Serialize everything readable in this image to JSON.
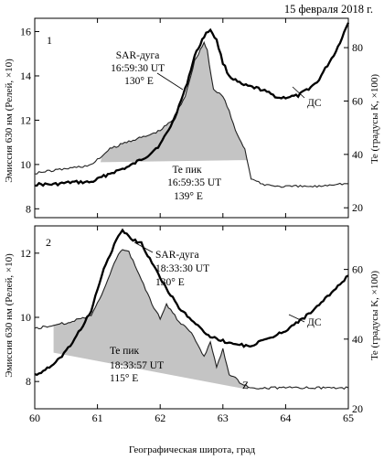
{
  "date_label": "15 февраля 2018 г.",
  "chart_data": [
    {
      "type": "line",
      "panel_label": "1",
      "xlabel": "Географическая широта, град",
      "ylabel_left": "Эмиссия 630 нм (Релей, ×10)",
      "ylabel_right": "Te (градусы K, ×100)",
      "xlim": [
        60,
        65
      ],
      "ylim_left": [
        7.6,
        16.6
      ],
      "ylim_right": [
        16.3,
        91
      ],
      "x_ticks": [
        "60",
        "61",
        "62",
        "63",
        "64",
        "65"
      ],
      "y_ticks_left": [
        8,
        10,
        12,
        14,
        16
      ],
      "y_ticks_left_labels": [
        "8",
        "10",
        "12",
        "14",
        "16"
      ],
      "y_ticks_right": [
        20,
        40,
        60,
        80
      ],
      "y_ticks_right_labels": [
        "20",
        "40",
        "60",
        "80"
      ],
      "series": [
        {
          "name": "",
          "axis": "left",
          "x": [
            60.0,
            60.3,
            60.6,
            60.9,
            61.2,
            61.5,
            61.8,
            62.0,
            62.2,
            62.4,
            62.55,
            62.7,
            62.8,
            62.9,
            63.0,
            63.1,
            63.3,
            63.6,
            63.9,
            64.2,
            64.5,
            64.8,
            65.0
          ],
          "y": [
            9.1,
            9.1,
            9.2,
            9.2,
            9.6,
            9.9,
            10.4,
            10.9,
            11.9,
            13.4,
            14.9,
            15.8,
            16.1,
            15.6,
            14.6,
            14.0,
            13.6,
            13.4,
            13.0,
            13.1,
            13.7,
            15.1,
            16.4
          ]
        },
        {
          "name": "",
          "axis": "right",
          "x": [
            60.0,
            60.3,
            60.6,
            60.9,
            61.2,
            61.5,
            61.8,
            62.0,
            62.2,
            62.4,
            62.55,
            62.7,
            62.75,
            62.85,
            63.0,
            63.1,
            63.2,
            63.35,
            63.45,
            63.6,
            63.9,
            64.2,
            64.5,
            64.8,
            65.0
          ],
          "y": [
            33,
            34,
            35,
            36,
            42,
            45,
            47,
            49,
            53,
            62,
            75,
            82,
            79,
            64,
            62,
            56,
            49,
            42,
            31,
            29,
            28,
            28,
            28,
            29,
            29
          ]
        }
      ],
      "annotations": [
        {
          "lines": [
            "SAR-дуга",
            "16:59:30 UT",
            "130° E"
          ]
        },
        {
          "lines": [
            "Te пик",
            "16:59:35 UT",
            "139° E"
          ]
        },
        {
          "lines": [
            "ДС"
          ]
        }
      ]
    },
    {
      "type": "line",
      "panel_label": "2",
      "xlabel": "Географическая широта, град",
      "ylabel_left": "Эмиссия 630 нм (Релей, ×10)",
      "ylabel_right": "Te (градусы K, ×100)",
      "xlim": [
        60,
        65
      ],
      "ylim_left": [
        7.15,
        12.85
      ],
      "ylim_right": [
        20,
        72.5
      ],
      "x_ticks": [
        "60",
        "61",
        "62",
        "63",
        "64",
        "65"
      ],
      "y_ticks_left": [
        8,
        10,
        12
      ],
      "y_ticks_left_labels": [
        "8",
        "10",
        "12"
      ],
      "y_ticks_right": [
        20,
        40,
        60
      ],
      "y_ticks_right_labels": [
        "20",
        "40",
        "60"
      ],
      "series": [
        {
          "name": "",
          "axis": "left",
          "x": [
            60.0,
            60.3,
            60.6,
            60.9,
            61.1,
            61.3,
            61.4,
            61.5,
            61.7,
            61.9,
            62.1,
            62.3,
            62.5,
            62.8,
            63.1,
            63.4,
            63.7,
            64.0,
            64.3,
            64.6,
            64.9,
            65.0
          ],
          "y": [
            8.2,
            8.5,
            9.2,
            10.2,
            11.5,
            12.4,
            12.7,
            12.5,
            12.3,
            11.6,
            10.9,
            10.3,
            9.9,
            9.4,
            9.2,
            9.1,
            9.3,
            9.6,
            10.0,
            10.5,
            11.1,
            11.3
          ]
        },
        {
          "name": "",
          "axis": "right",
          "x": [
            60.0,
            60.3,
            60.6,
            60.9,
            61.1,
            61.3,
            61.4,
            61.5,
            61.7,
            61.9,
            62.0,
            62.1,
            62.3,
            62.5,
            62.7,
            62.8,
            62.9,
            63.0,
            63.1,
            63.2,
            63.3,
            63.5,
            63.8,
            64.1,
            64.4,
            64.7,
            65.0
          ],
          "y": [
            43,
            44,
            45,
            47,
            54,
            63,
            66,
            65,
            57,
            49,
            46,
            50,
            45,
            42,
            35,
            39,
            32,
            37,
            30,
            29,
            27,
            26,
            26,
            26,
            26,
            26,
            26
          ]
        }
      ],
      "annotations": [
        {
          "lines": [
            "SAR-дуга",
            "18:33:30 UT",
            "130° E"
          ]
        },
        {
          "lines": [
            "Te пик",
            "18:33:57 UT",
            "115° E"
          ]
        },
        {
          "lines": [
            "ДС"
          ]
        },
        {
          "lines": [
            "Z"
          ]
        }
      ]
    }
  ]
}
